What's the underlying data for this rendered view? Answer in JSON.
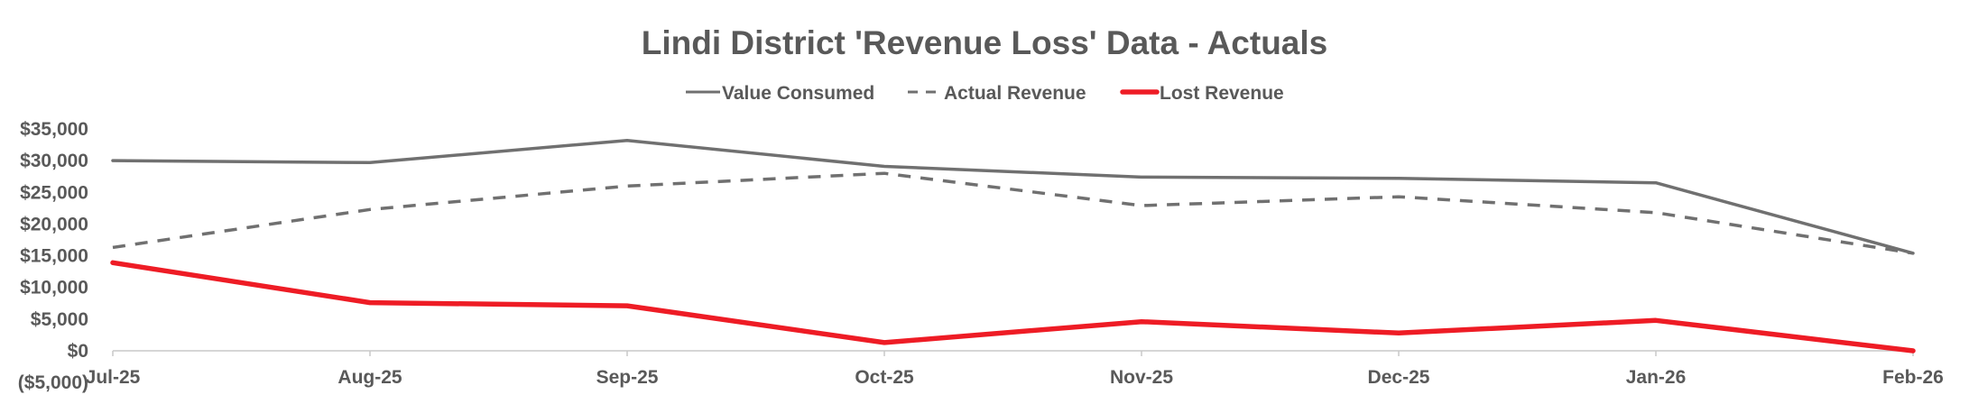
{
  "chart_data": {
    "type": "line",
    "title": "Lindi District 'Revenue Loss' Data - Actuals",
    "categories": [
      "Jul-25",
      "Aug-25",
      "Sep-25",
      "Oct-25",
      "Nov-25",
      "Dec-25",
      "Jan-26",
      "Feb-26"
    ],
    "ylim": [
      -5000,
      35000
    ],
    "yticks": [
      35000,
      30000,
      25000,
      20000,
      15000,
      10000,
      5000,
      0,
      -5000
    ],
    "ytick_labels": [
      "$35,000",
      "$30,000",
      "$25,000",
      "$20,000",
      "$15,000",
      "$10,000",
      "$5,000",
      "$0",
      "($5,000)"
    ],
    "legend_position": "top-center",
    "grid": false,
    "series": [
      {
        "name": "Value Consumed",
        "color": "#707070",
        "style": "solid",
        "values": [
          30000,
          29700,
          33200,
          29100,
          27400,
          27200,
          26500,
          15400
        ]
      },
      {
        "name": "Actual Revenue",
        "color": "#707070",
        "style": "dashed",
        "values": [
          16300,
          22300,
          26000,
          28000,
          22900,
          24300,
          21800,
          15400
        ]
      },
      {
        "name": "Lost Revenue",
        "color": "#ee1c25",
        "style": "solid-thick",
        "values": [
          13900,
          7600,
          7100,
          1300,
          4600,
          2800,
          4800,
          0
        ]
      }
    ]
  }
}
